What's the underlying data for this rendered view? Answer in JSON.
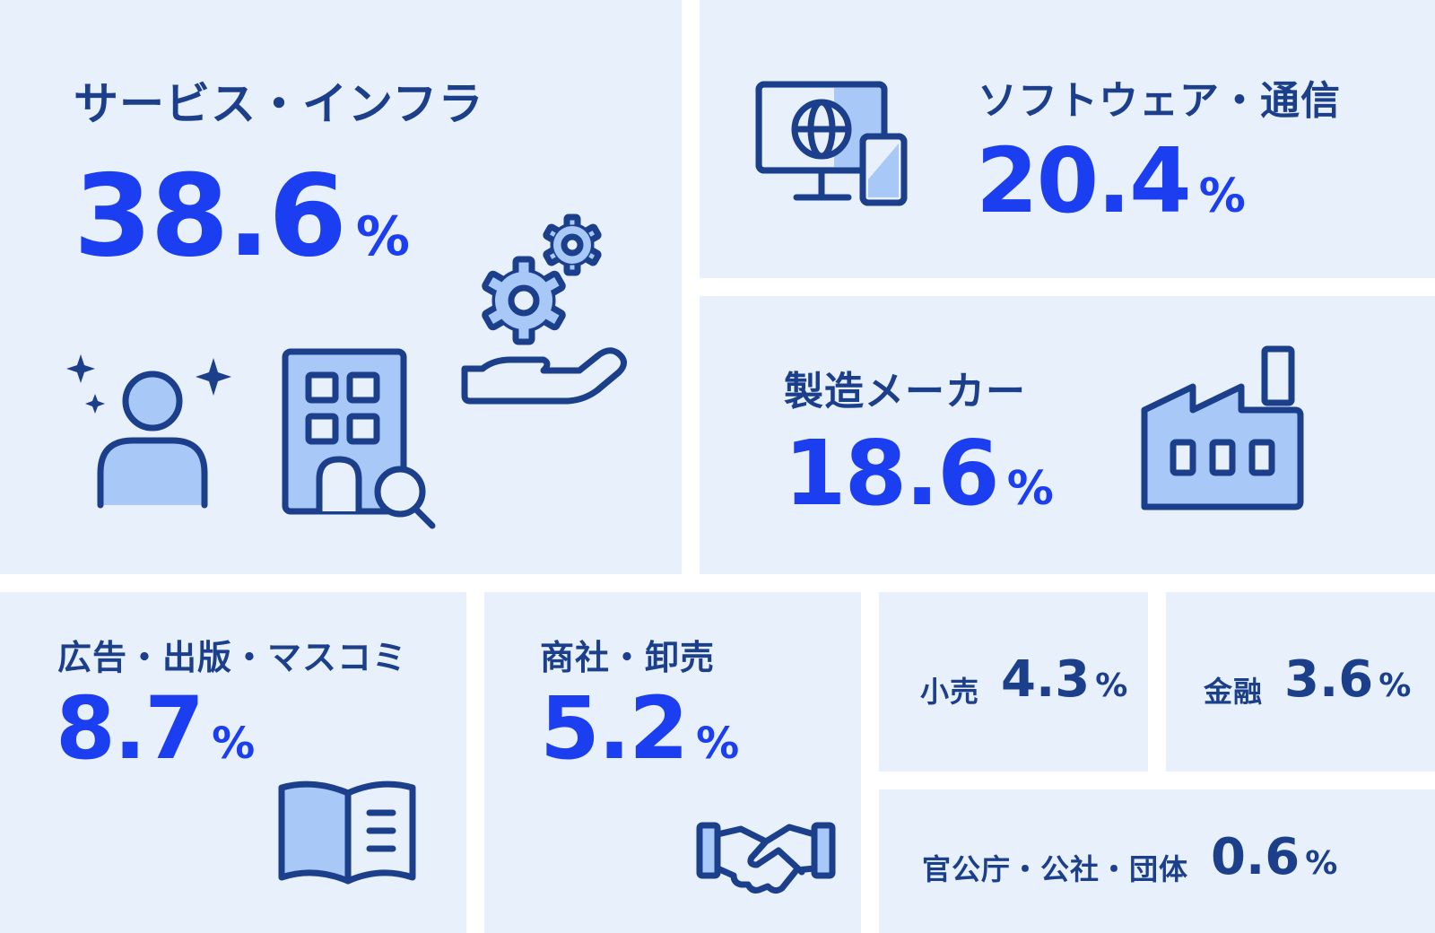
{
  "chart_data": {
    "type": "table",
    "unit": "%",
    "categories": [
      "サービス・インフラ",
      "ソフトウェア・通信",
      "製造メーカー",
      "広告・出版・マスコミ",
      "商社・卸売",
      "小売",
      "金融",
      "官公庁・公社・団体"
    ],
    "values": [
      38.6,
      20.4,
      18.6,
      8.7,
      5.2,
      4.3,
      3.6,
      0.6
    ]
  },
  "tiles": [
    {
      "label": "サービス・インフラ",
      "value": "38.6",
      "unit": "%"
    },
    {
      "label": "ソフトウェア・通信",
      "value": "20.4",
      "unit": "%"
    },
    {
      "label": "製造メーカー",
      "value": "18.6",
      "unit": "%"
    },
    {
      "label": "広告・出版・マスコミ",
      "value": "8.7",
      "unit": "%"
    },
    {
      "label": "商社・卸売",
      "value": "5.2",
      "unit": "%"
    },
    {
      "label": "小売",
      "value": "4.3",
      "unit": "%"
    },
    {
      "label": "金融",
      "value": "3.6",
      "unit": "%"
    },
    {
      "label": "官公庁・公社・団体",
      "value": "0.6",
      "unit": "%"
    }
  ],
  "colors": {
    "tile_bg": "#e8f0fb",
    "value": "#1b3ff0",
    "label": "#1c3f8c",
    "icon_fill": "#a8c9f7"
  },
  "icons": [
    "person-sparkle-icon",
    "building-search-icon",
    "hand-gears-icon",
    "monitor-globe-icon",
    "factory-icon",
    "open-book-icon",
    "handshake-icon"
  ]
}
